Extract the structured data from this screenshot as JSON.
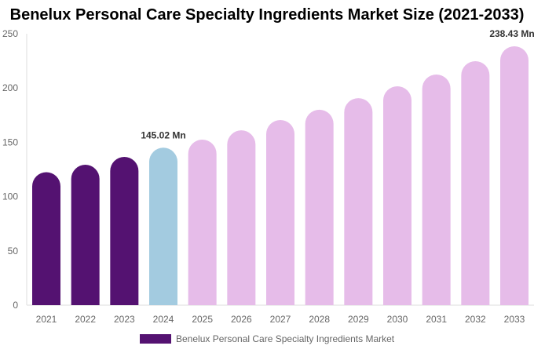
{
  "chart_data": {
    "type": "bar",
    "title": "Benelux Personal Care Specialty Ingredients Market Size (2021-2033)",
    "categories": [
      "2021",
      "2022",
      "2023",
      "2024",
      "2025",
      "2026",
      "2027",
      "2028",
      "2029",
      "2030",
      "2031",
      "2032",
      "2033"
    ],
    "series": [
      {
        "name": "Benelux Personal Care Specialty Ingredients Market",
        "values": [
          122.5,
          129.3,
          136.6,
          145.02,
          152.5,
          161.0,
          170.5,
          180.0,
          190.7,
          201.6,
          212.4,
          224.7,
          238.43
        ]
      }
    ],
    "data_labels": {
      "3": "145.02 Mn",
      "12": "238.43 Mn"
    },
    "ylim": [
      0,
      250
    ],
    "yticks": [
      "0",
      "50",
      "100",
      "150",
      "200",
      "250"
    ],
    "xlabel": "",
    "ylabel": "",
    "grid": false,
    "legend_position": "bottom",
    "colors": {
      "historical": "#541271",
      "current": "#a3cbe0",
      "forecast": "#e6bce9"
    }
  }
}
